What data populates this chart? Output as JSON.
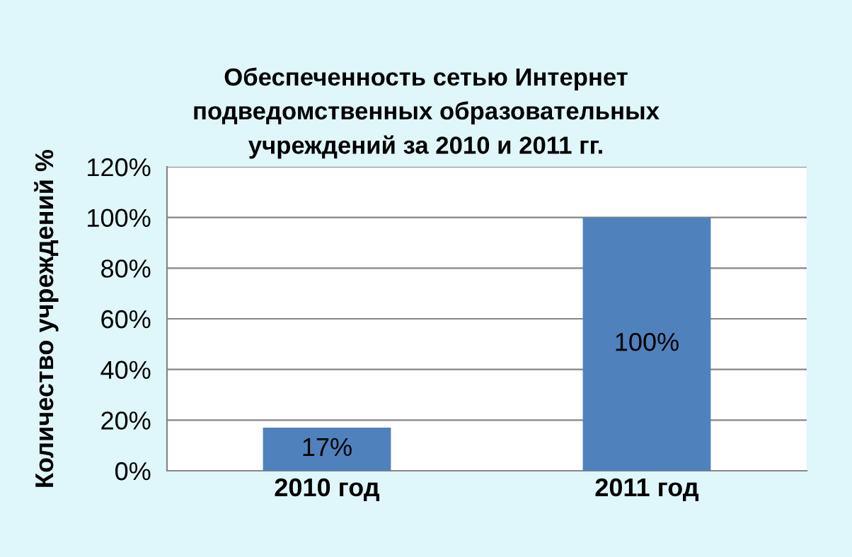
{
  "chart_data": {
    "type": "bar",
    "title": "Обеспеченность сетью Интернет\nподведомственных образовательных\nучреждений за 2010 и 2011 гг.",
    "ylabel": "Количество учреждений %",
    "categories": [
      "2010 год",
      "2011 год"
    ],
    "series": [
      {
        "color": "#4f81bd",
        "values": [
          17,
          100
        ]
      }
    ],
    "value_labels": [
      "17%",
      "100%"
    ],
    "ylim": [
      0,
      120
    ],
    "yticks": [
      {
        "value": 0,
        "label": "0%"
      },
      {
        "value": 20,
        "label": "20%"
      },
      {
        "value": 40,
        "label": "40%"
      },
      {
        "value": 60,
        "label": "60%"
      },
      {
        "value": 80,
        "label": "80%"
      },
      {
        "value": 100,
        "label": "100%"
      },
      {
        "value": 120,
        "label": "120%"
      }
    ],
    "grid": "y"
  }
}
